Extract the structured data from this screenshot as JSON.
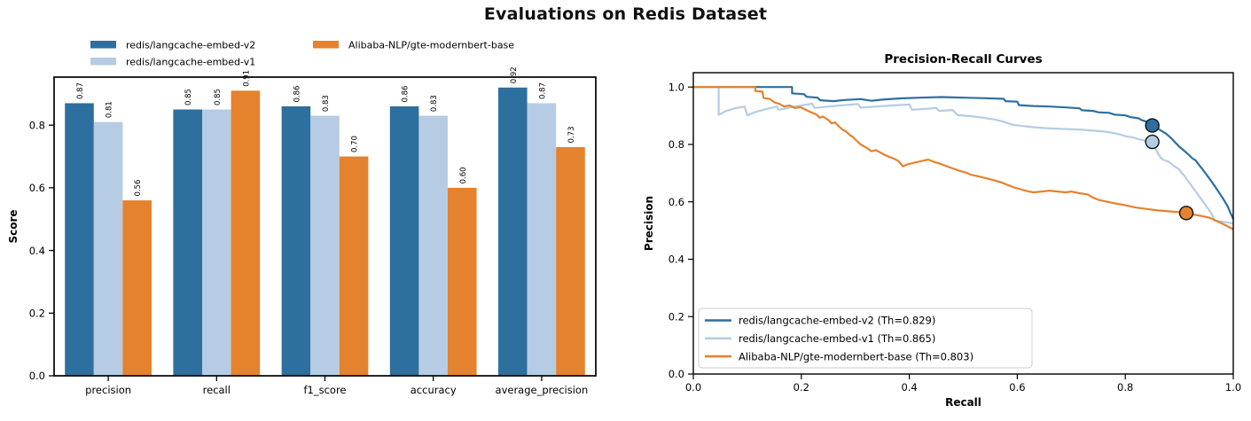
{
  "figure": {
    "title": "Evaluations on Redis Dataset",
    "background": "#ffffff"
  },
  "colors": {
    "v2_blue": "#2d6f9e",
    "v1_lightblue": "#b5cce4",
    "gte_orange": "#e5822d",
    "axis": "#000000",
    "bar_value_text": "#1a1a1a",
    "legend_border": "#cccccc"
  },
  "chart_data": [
    {
      "type": "bar",
      "title": "",
      "xlabel": "",
      "ylabel": "Score",
      "categories": [
        "precision",
        "recall",
        "f1_score",
        "accuracy",
        "average_precision"
      ],
      "series": [
        {
          "name": "redis/langcache-embed-v2",
          "color": "#2d6f9e",
          "values": [
            0.87,
            0.85,
            0.86,
            0.86,
            0.92
          ]
        },
        {
          "name": "redis/langcache-embed-v1",
          "color": "#b5cce4",
          "values": [
            0.81,
            0.85,
            0.83,
            0.83,
            0.87
          ]
        },
        {
          "name": "Alibaba-NLP/gte-modernbert-base",
          "color": "#e5822d",
          "values": [
            0.56,
            0.91,
            0.7,
            0.6,
            0.73
          ]
        }
      ],
      "ylim": [
        0,
        0.9533
      ],
      "yticks": [
        0.0,
        0.2,
        0.4,
        0.6,
        0.8
      ],
      "grid": false,
      "legend_position": "upper left, 2 columns, no frame",
      "bar_value_labels_rotated": true
    },
    {
      "type": "line",
      "title": "Precision-Recall Curves",
      "xlabel": "Recall",
      "ylabel": "Precision",
      "xlim": [
        0,
        1.0
      ],
      "ylim": [
        0,
        1.05
      ],
      "xticks": [
        0.0,
        0.2,
        0.4,
        0.6,
        0.8,
        1.0
      ],
      "yticks": [
        0.0,
        0.2,
        0.4,
        0.6,
        0.8,
        1.0
      ],
      "grid": false,
      "legend_position": "lower left, framed",
      "series": [
        {
          "name": "redis/langcache-embed-v2 (Th=0.829)",
          "color": "#2d6f9e",
          "threshold_point": [
            0.85,
            0.866
          ],
          "points": [
            [
              0,
              1
            ],
            [
              0.183,
              1
            ],
            [
              0.183,
              0.978
            ],
            [
              0.205,
              0.975
            ],
            [
              0.21,
              0.966
            ],
            [
              0.23,
              0.963
            ],
            [
              0.235,
              0.954
            ],
            [
              0.26,
              0.951
            ],
            [
              0.28,
              0.955
            ],
            [
              0.31,
              0.958
            ],
            [
              0.33,
              0.952
            ],
            [
              0.35,
              0.956
            ],
            [
              0.38,
              0.96
            ],
            [
              0.42,
              0.963
            ],
            [
              0.46,
              0.965
            ],
            [
              0.5,
              0.963
            ],
            [
              0.54,
              0.961
            ],
            [
              0.575,
              0.959
            ],
            [
              0.578,
              0.951
            ],
            [
              0.6,
              0.949
            ],
            [
              0.603,
              0.937
            ],
            [
              0.63,
              0.934
            ],
            [
              0.66,
              0.932
            ],
            [
              0.69,
              0.929
            ],
            [
              0.715,
              0.926
            ],
            [
              0.72,
              0.919
            ],
            [
              0.74,
              0.917
            ],
            [
              0.75,
              0.912
            ],
            [
              0.77,
              0.91
            ],
            [
              0.78,
              0.904
            ],
            [
              0.8,
              0.901
            ],
            [
              0.81,
              0.895
            ],
            [
              0.825,
              0.891
            ],
            [
              0.83,
              0.885
            ],
            [
              0.84,
              0.879
            ],
            [
              0.845,
              0.872
            ],
            [
              0.85,
              0.866
            ],
            [
              0.857,
              0.86
            ],
            [
              0.862,
              0.853
            ],
            [
              0.868,
              0.846
            ],
            [
              0.875,
              0.838
            ],
            [
              0.88,
              0.83
            ],
            [
              0.885,
              0.822
            ],
            [
              0.89,
              0.812
            ],
            [
              0.895,
              0.802
            ],
            [
              0.9,
              0.792
            ],
            [
              0.906,
              0.783
            ],
            [
              0.912,
              0.773
            ],
            [
              0.918,
              0.763
            ],
            [
              0.924,
              0.752
            ],
            [
              0.93,
              0.745
            ],
            [
              0.936,
              0.73
            ],
            [
              0.942,
              0.716
            ],
            [
              0.948,
              0.701
            ],
            [
              0.954,
              0.686
            ],
            [
              0.96,
              0.67
            ],
            [
              0.966,
              0.654
            ],
            [
              0.972,
              0.637
            ],
            [
              0.978,
              0.62
            ],
            [
              0.984,
              0.602
            ],
            [
              0.99,
              0.583
            ],
            [
              0.994,
              0.565
            ],
            [
              0.997,
              0.552
            ],
            [
              1,
              0.54
            ]
          ]
        },
        {
          "name": "redis/langcache-embed-v1 (Th=0.865)",
          "color": "#b5cce4",
          "threshold_point": [
            0.85,
            0.809
          ],
          "points": [
            [
              0,
              1
            ],
            [
              0.047,
              1
            ],
            [
              0.047,
              0.903
            ],
            [
              0.06,
              0.916
            ],
            [
              0.075,
              0.925
            ],
            [
              0.095,
              0.932
            ],
            [
              0.1,
              0.901
            ],
            [
              0.115,
              0.913
            ],
            [
              0.135,
              0.923
            ],
            [
              0.155,
              0.932
            ],
            [
              0.158,
              0.921
            ],
            [
              0.18,
              0.929
            ],
            [
              0.2,
              0.936
            ],
            [
              0.22,
              0.942
            ],
            [
              0.225,
              0.927
            ],
            [
              0.25,
              0.932
            ],
            [
              0.28,
              0.937
            ],
            [
              0.305,
              0.941
            ],
            [
              0.31,
              0.928
            ],
            [
              0.34,
              0.932
            ],
            [
              0.37,
              0.936
            ],
            [
              0.4,
              0.939
            ],
            [
              0.405,
              0.921
            ],
            [
              0.43,
              0.924
            ],
            [
              0.45,
              0.927
            ],
            [
              0.455,
              0.917
            ],
            [
              0.48,
              0.92
            ],
            [
              0.49,
              0.902
            ],
            [
              0.52,
              0.897
            ],
            [
              0.54,
              0.892
            ],
            [
              0.56,
              0.886
            ],
            [
              0.575,
              0.879
            ],
            [
              0.59,
              0.869
            ],
            [
              0.61,
              0.864
            ],
            [
              0.63,
              0.86
            ],
            [
              0.65,
              0.857
            ],
            [
              0.67,
              0.855
            ],
            [
              0.7,
              0.853
            ],
            [
              0.72,
              0.851
            ],
            [
              0.74,
              0.848
            ],
            [
              0.76,
              0.845
            ],
            [
              0.775,
              0.841
            ],
            [
              0.79,
              0.835
            ],
            [
              0.8,
              0.829
            ],
            [
              0.815,
              0.824
            ],
            [
              0.825,
              0.818
            ],
            [
              0.835,
              0.814
            ],
            [
              0.845,
              0.812
            ],
            [
              0.85,
              0.809
            ],
            [
              0.853,
              0.795
            ],
            [
              0.857,
              0.782
            ],
            [
              0.861,
              0.768
            ],
            [
              0.865,
              0.755
            ],
            [
              0.87,
              0.747
            ],
            [
              0.88,
              0.74
            ],
            [
              0.885,
              0.733
            ],
            [
              0.89,
              0.725
            ],
            [
              0.9,
              0.713
            ],
            [
              0.905,
              0.7
            ],
            [
              0.91,
              0.69
            ],
            [
              0.915,
              0.676
            ],
            [
              0.92,
              0.663
            ],
            [
              0.925,
              0.65
            ],
            [
              0.93,
              0.637
            ],
            [
              0.935,
              0.624
            ],
            [
              0.94,
              0.611
            ],
            [
              0.945,
              0.598
            ],
            [
              0.95,
              0.585
            ],
            [
              0.955,
              0.572
            ],
            [
              0.96,
              0.558
            ],
            [
              0.963,
              0.545
            ],
            [
              0.965,
              0.535
            ],
            [
              0.975,
              0.532
            ],
            [
              0.99,
              0.528
            ],
            [
              1,
              0.524
            ]
          ]
        },
        {
          "name": "Alibaba-NLP/gte-modernbert-base (Th=0.803)",
          "color": "#e5822d",
          "threshold_point": [
            0.913,
            0.561
          ],
          "points": [
            [
              0,
              1
            ],
            [
              0.115,
              1
            ],
            [
              0.115,
              0.986
            ],
            [
              0.128,
              0.984
            ],
            [
              0.13,
              0.962
            ],
            [
              0.142,
              0.958
            ],
            [
              0.15,
              0.947
            ],
            [
              0.16,
              0.941
            ],
            [
              0.168,
              0.932
            ],
            [
              0.178,
              0.936
            ],
            [
              0.188,
              0.927
            ],
            [
              0.198,
              0.93
            ],
            [
              0.208,
              0.921
            ],
            [
              0.218,
              0.912
            ],
            [
              0.228,
              0.904
            ],
            [
              0.234,
              0.893
            ],
            [
              0.24,
              0.897
            ],
            [
              0.25,
              0.885
            ],
            [
              0.256,
              0.873
            ],
            [
              0.262,
              0.877
            ],
            [
              0.27,
              0.862
            ],
            [
              0.276,
              0.852
            ],
            [
              0.283,
              0.845
            ],
            [
              0.29,
              0.833
            ],
            [
              0.296,
              0.825
            ],
            [
              0.303,
              0.812
            ],
            [
              0.31,
              0.8
            ],
            [
              0.317,
              0.792
            ],
            [
              0.324,
              0.784
            ],
            [
              0.33,
              0.776
            ],
            [
              0.338,
              0.78
            ],
            [
              0.346,
              0.772
            ],
            [
              0.354,
              0.764
            ],
            [
              0.362,
              0.757
            ],
            [
              0.372,
              0.75
            ],
            [
              0.38,
              0.742
            ],
            [
              0.388,
              0.724
            ],
            [
              0.396,
              0.73
            ],
            [
              0.41,
              0.737
            ],
            [
              0.425,
              0.743
            ],
            [
              0.435,
              0.747
            ],
            [
              0.445,
              0.74
            ],
            [
              0.455,
              0.734
            ],
            [
              0.465,
              0.727
            ],
            [
              0.475,
              0.72
            ],
            [
              0.485,
              0.713
            ],
            [
              0.495,
              0.707
            ],
            [
              0.505,
              0.702
            ],
            [
              0.515,
              0.694
            ],
            [
              0.525,
              0.69
            ],
            [
              0.54,
              0.683
            ],
            [
              0.555,
              0.676
            ],
            [
              0.57,
              0.668
            ],
            [
              0.582,
              0.659
            ],
            [
              0.594,
              0.65
            ],
            [
              0.606,
              0.644
            ],
            [
              0.618,
              0.637
            ],
            [
              0.63,
              0.633
            ],
            [
              0.645,
              0.636
            ],
            [
              0.66,
              0.639
            ],
            [
              0.675,
              0.636
            ],
            [
              0.69,
              0.633
            ],
            [
              0.7,
              0.636
            ],
            [
              0.715,
              0.63
            ],
            [
              0.73,
              0.626
            ],
            [
              0.74,
              0.615
            ],
            [
              0.75,
              0.607
            ],
            [
              0.765,
              0.601
            ],
            [
              0.78,
              0.595
            ],
            [
              0.8,
              0.588
            ],
            [
              0.82,
              0.58
            ],
            [
              0.84,
              0.575
            ],
            [
              0.86,
              0.57
            ],
            [
              0.88,
              0.567
            ],
            [
              0.9,
              0.564
            ],
            [
              0.913,
              0.561
            ],
            [
              0.925,
              0.556
            ],
            [
              0.94,
              0.551
            ],
            [
              0.955,
              0.545
            ],
            [
              0.965,
              0.537
            ],
            [
              0.975,
              0.528
            ],
            [
              0.985,
              0.519
            ],
            [
              0.993,
              0.511
            ],
            [
              1,
              0.504
            ]
          ]
        }
      ]
    }
  ]
}
